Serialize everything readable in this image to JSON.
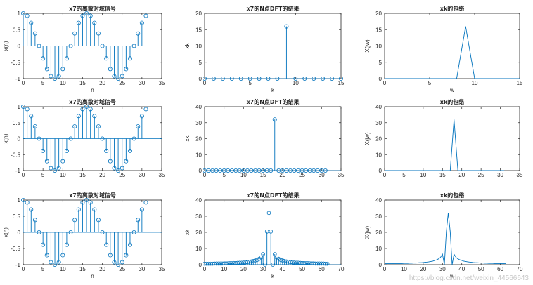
{
  "watermark": "https://blog.csdn.net/weixin_44566643",
  "colors": {
    "stem": "#0072bd",
    "axis": "#262626",
    "background": "#ffffff"
  },
  "chart_data": [
    {
      "id": "r1c1",
      "type": "stem",
      "title": "x7的离散时域信号",
      "xlabel": "n",
      "ylabel": "x(n)",
      "xlim": [
        0,
        35
      ],
      "ylim": [
        -1,
        1
      ],
      "xticks": [
        0,
        5,
        10,
        15,
        20,
        25,
        30,
        35
      ],
      "yticks": [
        -1,
        -0.5,
        0,
        0.5,
        1
      ],
      "x": [
        0,
        1,
        2,
        3,
        4,
        5,
        6,
        7,
        8,
        9,
        10,
        11,
        12,
        13,
        14,
        15,
        16,
        17,
        18,
        19,
        20,
        21,
        22,
        23,
        24,
        25,
        26,
        27,
        28,
        29,
        30,
        31
      ],
      "y": [
        1,
        0.924,
        0.707,
        0.383,
        0,
        -0.383,
        -0.707,
        -0.924,
        -1,
        -0.924,
        -0.707,
        -0.383,
        0,
        0.383,
        0.707,
        0.924,
        1,
        0.924,
        0.707,
        0.383,
        0,
        -0.383,
        -0.707,
        -0.924,
        -1,
        -0.924,
        -0.707,
        -0.383,
        0,
        0.383,
        0.707,
        0.924
      ]
    },
    {
      "id": "r1c2",
      "type": "stem",
      "title": "x7的N点DFT的结果",
      "xlabel": "k",
      "ylabel": "xk",
      "xlim": [
        0,
        15
      ],
      "ylim": [
        0,
        20
      ],
      "xticks": [
        0,
        5,
        10,
        15
      ],
      "yticks": [
        0,
        5,
        10,
        15,
        20
      ],
      "x": [
        0,
        1,
        2,
        3,
        4,
        5,
        6,
        7,
        8,
        9,
        10,
        11,
        12,
        13,
        14,
        15
      ],
      "y": [
        0,
        0,
        0,
        0,
        0,
        0,
        0,
        0,
        0,
        16,
        0,
        0,
        0,
        0,
        0,
        0
      ]
    },
    {
      "id": "r1c3",
      "type": "line",
      "title": "xk的包络",
      "xlabel": "w",
      "ylabel": "X(jw)",
      "xlim": [
        0,
        15
      ],
      "ylim": [
        0,
        20
      ],
      "xticks": [
        0,
        5,
        10,
        15
      ],
      "yticks": [
        0,
        5,
        10,
        15,
        20
      ],
      "x": [
        0,
        1,
        2,
        3,
        4,
        5,
        6,
        7,
        8,
        9,
        10,
        11,
        12,
        13,
        14,
        15
      ],
      "y": [
        0,
        0,
        0,
        0,
        0,
        0,
        0,
        0,
        0,
        16,
        0,
        0,
        0,
        0,
        0,
        0
      ]
    },
    {
      "id": "r2c1",
      "type": "stem",
      "title": "x7的离散时域信号",
      "xlabel": "",
      "ylabel": "x(n)",
      "xlim": [
        0,
        35
      ],
      "ylim": [
        -1,
        1
      ],
      "xticks": [
        0,
        5,
        10,
        15,
        20,
        25,
        30,
        35
      ],
      "yticks": [
        -1,
        -0.5,
        0,
        0.5,
        1
      ],
      "x": [
        0,
        1,
        2,
        3,
        4,
        5,
        6,
        7,
        8,
        9,
        10,
        11,
        12,
        13,
        14,
        15,
        16,
        17,
        18,
        19,
        20,
        21,
        22,
        23,
        24,
        25,
        26,
        27,
        28,
        29,
        30,
        31
      ],
      "y": [
        1,
        0.924,
        0.707,
        0.383,
        0,
        -0.383,
        -0.707,
        -0.924,
        -1,
        -0.924,
        -0.707,
        -0.383,
        0,
        0.383,
        0.707,
        0.924,
        1,
        0.924,
        0.707,
        0.383,
        0,
        -0.383,
        -0.707,
        -0.924,
        -1,
        -0.924,
        -0.707,
        -0.383,
        0,
        0.383,
        0.707,
        0.924
      ]
    },
    {
      "id": "r2c2",
      "type": "stem",
      "title": "x7的N点DFT的结果",
      "xlabel": "",
      "ylabel": "xk",
      "xlim": [
        0,
        35
      ],
      "ylim": [
        0,
        40
      ],
      "xticks": [
        0,
        5,
        10,
        15,
        20,
        25,
        30,
        35
      ],
      "yticks": [
        0,
        10,
        20,
        30,
        40
      ],
      "x": [
        0,
        1,
        2,
        3,
        4,
        5,
        6,
        7,
        8,
        9,
        10,
        11,
        12,
        13,
        14,
        15,
        16,
        17,
        18,
        19,
        20,
        21,
        22,
        23,
        24,
        25,
        26,
        27,
        28,
        29,
        30,
        31
      ],
      "y": [
        0,
        0,
        0,
        0,
        0,
        0,
        0,
        0,
        0,
        0,
        0,
        0,
        0,
        0,
        0,
        0,
        0,
        0,
        32,
        0,
        0,
        0,
        0,
        0,
        0,
        0,
        0,
        0,
        0,
        0,
        0,
        0
      ]
    },
    {
      "id": "r2c3",
      "type": "line",
      "title": "xk的包络",
      "xlabel": "",
      "ylabel": "X(jw)",
      "xlim": [
        0,
        35
      ],
      "ylim": [
        0,
        40
      ],
      "xticks": [
        0,
        5,
        10,
        15,
        20,
        25,
        30,
        35
      ],
      "yticks": [
        0,
        10,
        20,
        30,
        40
      ],
      "x": [
        0,
        1,
        2,
        3,
        4,
        5,
        6,
        7,
        8,
        9,
        10,
        11,
        12,
        13,
        14,
        15,
        16,
        17,
        18,
        19,
        20,
        21,
        22,
        23,
        24,
        25,
        26,
        27,
        28,
        29,
        30,
        31
      ],
      "y": [
        0,
        0,
        0,
        0,
        0,
        0,
        0,
        0,
        0,
        0,
        0,
        0,
        0,
        0,
        0,
        0,
        0,
        0,
        32,
        0,
        0,
        0,
        0,
        0,
        0,
        0,
        0,
        0,
        0,
        0,
        0,
        0
      ]
    },
    {
      "id": "r3c1",
      "type": "stem",
      "title": "x7的离散时域信号",
      "xlabel": "n",
      "ylabel": "x(n)",
      "xlim": [
        0,
        35
      ],
      "ylim": [
        -1,
        1
      ],
      "xticks": [
        0,
        5,
        10,
        15,
        20,
        25,
        30,
        35
      ],
      "yticks": [
        -1,
        -0.5,
        0,
        0.5,
        1
      ],
      "x": [
        0,
        1,
        2,
        3,
        4,
        5,
        6,
        7,
        8,
        9,
        10,
        11,
        12,
        13,
        14,
        15,
        16,
        17,
        18,
        19,
        20,
        21,
        22,
        23,
        24,
        25,
        26,
        27,
        28,
        29,
        30,
        31
      ],
      "y": [
        1,
        0.924,
        0.707,
        0.383,
        0,
        -0.383,
        -0.707,
        -0.924,
        -1,
        -0.924,
        -0.707,
        -0.383,
        0,
        0.383,
        0.707,
        0.924,
        1,
        0.924,
        0.707,
        0.383,
        0,
        -0.383,
        -0.707,
        -0.924,
        -1,
        -0.924,
        -0.707,
        -0.383,
        0,
        0.383,
        0.707,
        0.924
      ]
    },
    {
      "id": "r3c2",
      "type": "stem",
      "title": "x7的N点DFT的结果",
      "xlabel": "k",
      "ylabel": "xk",
      "xlim": [
        0,
        70
      ],
      "ylim": [
        0,
        40
      ],
      "xticks": [
        0,
        10,
        20,
        30,
        40,
        50,
        60,
        70
      ],
      "yticks": [
        0,
        10,
        20,
        30,
        40
      ],
      "x": [
        0,
        1,
        2,
        3,
        4,
        5,
        6,
        7,
        8,
        9,
        10,
        11,
        12,
        13,
        14,
        15,
        16,
        17,
        18,
        19,
        20,
        21,
        22,
        23,
        24,
        25,
        26,
        27,
        28,
        29,
        30,
        31,
        32,
        33,
        34,
        35,
        36,
        37,
        38,
        39,
        40,
        41,
        42,
        43,
        44,
        45,
        46,
        47,
        48,
        49,
        50,
        51,
        52,
        53,
        54,
        55,
        56,
        57,
        58,
        59,
        60,
        61,
        62,
        63
      ],
      "y": [
        0.6,
        0.6,
        0.6,
        0.6,
        0.6,
        0.7,
        0.7,
        0.7,
        0.7,
        0.7,
        0.8,
        0.8,
        0.8,
        0.9,
        0.9,
        1.0,
        1.0,
        1.1,
        1.2,
        1.2,
        1.3,
        1.5,
        1.6,
        1.8,
        2.0,
        2.2,
        2.6,
        3.0,
        3.6,
        4.5,
        6.5,
        0,
        20.5,
        32,
        20.5,
        0,
        6.5,
        4.5,
        3.6,
        3.0,
        2.6,
        2.2,
        2.0,
        1.8,
        1.6,
        1.5,
        1.3,
        1.2,
        1.2,
        1.1,
        1.0,
        1.0,
        0.9,
        0.9,
        0.8,
        0.8,
        0.8,
        0.7,
        0.7,
        0.7,
        0.7,
        0.7,
        0.6,
        0.6
      ]
    },
    {
      "id": "r3c3",
      "type": "line",
      "title": "xk的包络",
      "xlabel": "w",
      "ylabel": "X(jw)",
      "xlim": [
        0,
        70
      ],
      "ylim": [
        0,
        40
      ],
      "xticks": [
        0,
        10,
        20,
        30,
        40,
        50,
        60,
        70
      ],
      "yticks": [
        0,
        10,
        20,
        30,
        40
      ],
      "x": [
        0,
        1,
        2,
        3,
        4,
        5,
        6,
        7,
        8,
        9,
        10,
        11,
        12,
        13,
        14,
        15,
        16,
        17,
        18,
        19,
        20,
        21,
        22,
        23,
        24,
        25,
        26,
        27,
        28,
        29,
        30,
        31,
        32,
        33,
        34,
        35,
        36,
        37,
        38,
        39,
        40,
        41,
        42,
        43,
        44,
        45,
        46,
        47,
        48,
        49,
        50,
        51,
        52,
        53,
        54,
        55,
        56,
        57,
        58,
        59,
        60,
        61,
        62,
        63
      ],
      "y": [
        0.6,
        0.6,
        0.6,
        0.6,
        0.6,
        0.7,
        0.7,
        0.7,
        0.7,
        0.7,
        0.8,
        0.8,
        0.8,
        0.9,
        0.9,
        1.0,
        1.0,
        1.1,
        1.2,
        1.2,
        1.3,
        1.5,
        1.6,
        1.8,
        2.0,
        2.2,
        2.6,
        3.0,
        3.6,
        4.5,
        6.5,
        0,
        20.5,
        32,
        20.5,
        0,
        6.5,
        4.5,
        3.6,
        3.0,
        2.6,
        2.2,
        2.0,
        1.8,
        1.6,
        1.5,
        1.3,
        1.2,
        1.2,
        1.1,
        1.0,
        1.0,
        0.9,
        0.9,
        0.8,
        0.8,
        0.8,
        0.7,
        0.7,
        0.7,
        0.7,
        0.7,
        0.6,
        0.6
      ]
    }
  ]
}
